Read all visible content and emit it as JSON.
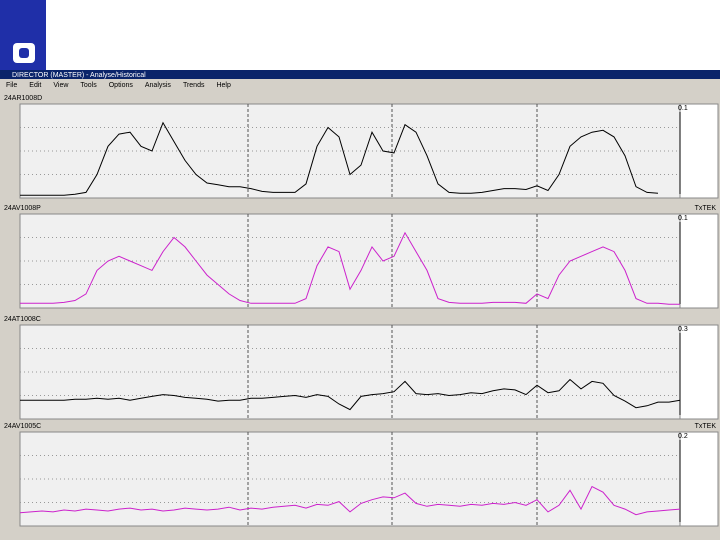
{
  "window_title": "DIRECTOR (MASTER) - Analyse/Historical",
  "menu": [
    "File",
    "Edit",
    "View",
    "Tools",
    "Options",
    "Analysis",
    "Trends",
    "Help"
  ],
  "panels": [
    {
      "tag": "24AR1008D",
      "scale_label": "0.1",
      "color": "#000000",
      "values": [
        0.3,
        0.3,
        0.3,
        0.3,
        0.3,
        0.4,
        0.6,
        2.5,
        5.5,
        6.8,
        7.0,
        5.5,
        5.0,
        8.0,
        6.0,
        4.0,
        2.5,
        1.6,
        1.4,
        1.2,
        1.2,
        1.0,
        0.7,
        0.6,
        0.6,
        0.6,
        1.5,
        5.5,
        7.5,
        6.5,
        2.5,
        3.5,
        7.0,
        5.0,
        4.8,
        7.8,
        7.0,
        4.5,
        1.5,
        0.6,
        0.5,
        0.5,
        0.6,
        0.8,
        1.0,
        1.0,
        0.9,
        1.3,
        0.8,
        2.5,
        5.5,
        6.5,
        7.0,
        7.2,
        6.5,
        4.5,
        1.2,
        0.6,
        0.5,
        null,
        null
      ]
    },
    {
      "tag": "24AV1008P",
      "right_label": "TxTEK",
      "scale_label": "0.1",
      "color": "#cc22cc",
      "values": [
        0.5,
        0.5,
        0.5,
        0.5,
        0.6,
        0.8,
        1.5,
        4.0,
        5.0,
        5.5,
        5.0,
        4.5,
        4.0,
        6.0,
        7.5,
        6.5,
        5.0,
        3.5,
        2.5,
        1.5,
        0.8,
        0.5,
        0.5,
        0.5,
        0.5,
        0.5,
        1.0,
        4.5,
        6.5,
        6.0,
        2.0,
        4.0,
        6.5,
        5.0,
        5.5,
        8.0,
        6.0,
        4.0,
        1.0,
        0.6,
        0.5,
        0.5,
        0.5,
        0.6,
        0.6,
        0.6,
        0.5,
        1.5,
        1.0,
        3.5,
        5.0,
        5.5,
        6.0,
        6.5,
        6.0,
        4.0,
        1.0,
        0.5,
        0.5,
        0.4,
        0.4
      ]
    },
    {
      "tag": "24AT1008C",
      "scale_label": "0.3",
      "color": "#000000",
      "values": [
        2.0,
        2.0,
        2.0,
        2.0,
        2.0,
        2.1,
        2.1,
        2.2,
        2.1,
        2.2,
        2.0,
        2.2,
        2.4,
        2.6,
        2.5,
        2.3,
        2.2,
        2.1,
        1.9,
        2.0,
        2.0,
        2.2,
        2.2,
        2.3,
        2.4,
        2.5,
        2.3,
        2.6,
        2.4,
        1.6,
        1.0,
        2.4,
        2.6,
        2.7,
        2.9,
        4.0,
        2.7,
        2.6,
        2.7,
        2.5,
        2.6,
        2.8,
        2.7,
        3.0,
        3.2,
        3.1,
        2.6,
        3.6,
        2.8,
        3.0,
        4.2,
        3.2,
        4.0,
        3.8,
        2.5,
        1.9,
        1.2,
        1.4,
        1.8,
        1.8,
        2.0
      ]
    },
    {
      "tag": "24AV1005C",
      "right_label": "TxTEK",
      "scale_label": "0.2",
      "color": "#cc22cc",
      "values": [
        1.4,
        1.5,
        1.6,
        1.5,
        1.7,
        1.6,
        1.8,
        1.7,
        1.6,
        1.8,
        1.9,
        1.7,
        1.8,
        1.6,
        1.7,
        1.9,
        1.8,
        1.7,
        1.8,
        2.0,
        1.7,
        1.9,
        1.8,
        2.0,
        2.1,
        2.2,
        1.9,
        2.3,
        2.2,
        2.6,
        1.5,
        2.4,
        2.8,
        3.1,
        3.0,
        3.5,
        2.4,
        2.1,
        2.3,
        2.2,
        2.1,
        2.3,
        2.2,
        2.4,
        2.3,
        2.5,
        2.2,
        2.8,
        1.5,
        2.2,
        3.8,
        1.8,
        4.2,
        3.6,
        2.2,
        1.8,
        1.2,
        1.5,
        1.6,
        1.7,
        1.8
      ]
    }
  ]
}
